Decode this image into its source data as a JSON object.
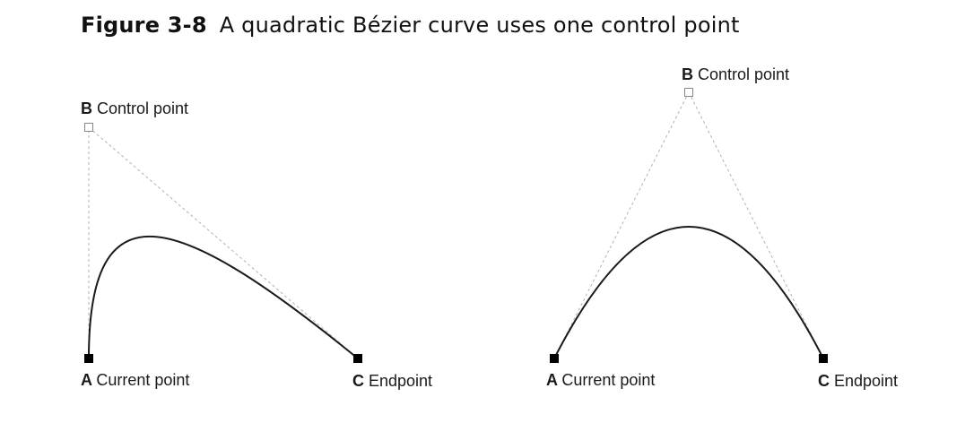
{
  "caption": {
    "figure_number": "Figure 3-8",
    "text": "A quadratic Bézier curve uses one control point"
  },
  "diagrams": [
    {
      "points": {
        "A": {
          "letter": "A",
          "label": "Current point"
        },
        "B": {
          "letter": "B",
          "label": "Control point"
        },
        "C": {
          "letter": "C",
          "label": "Endpoint"
        }
      }
    },
    {
      "points": {
        "A": {
          "letter": "A",
          "label": "Current point"
        },
        "B": {
          "letter": "B",
          "label": "Control point"
        },
        "C": {
          "letter": "C",
          "label": "Endpoint"
        }
      }
    }
  ],
  "colors": {
    "curve": "#1a1a1a",
    "guide": "#b0b0b0",
    "endpoint_fill": "#000000",
    "control_fill": "#ffffff",
    "control_stroke": "#888888"
  }
}
